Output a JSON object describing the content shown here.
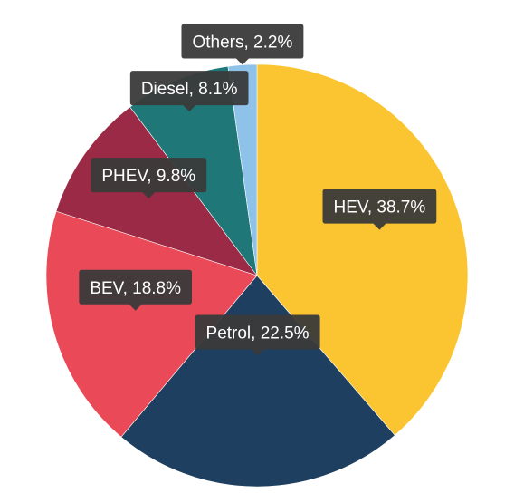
{
  "chart_data": {
    "type": "pie",
    "slices": [
      {
        "label": "HEV",
        "value": 38.7,
        "color": "#FBC531",
        "text": "HEV, 38.7%"
      },
      {
        "label": "Petrol",
        "value": 22.5,
        "color": "#1E3F5F",
        "text": "Petrol, 22.5%"
      },
      {
        "label": "BEV",
        "value": 18.8,
        "color": "#EA4A58",
        "text": "BEV, 18.8%"
      },
      {
        "label": "PHEV",
        "value": 9.8,
        "color": "#9A2A45",
        "text": "PHEV, 9.8%"
      },
      {
        "label": "Diesel",
        "value": 8.1,
        "color": "#1F7777",
        "text": "Diesel, 8.1%"
      },
      {
        "label": "Others",
        "value": 2.2,
        "color": "#8EC2E8",
        "text": "Others, 2.2%"
      }
    ],
    "start_angle_deg": 0,
    "direction": "clockwise",
    "labels": "callout tooltips with percentage"
  },
  "colors": {
    "tooltip_bg": "#3A3A3A",
    "tooltip_text": "#FFFFFF",
    "slice_border": "#FFFFFF"
  }
}
